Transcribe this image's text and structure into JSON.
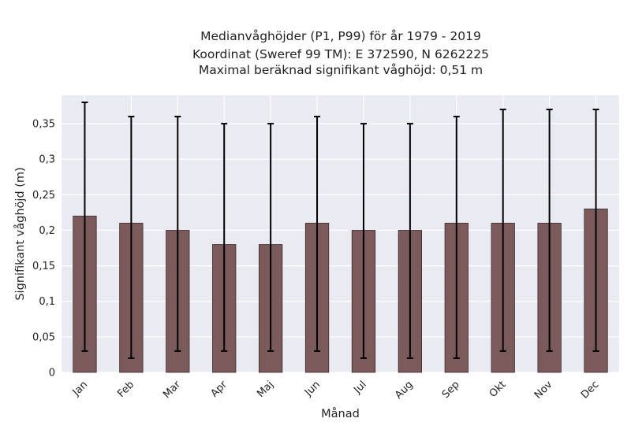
{
  "chart_data": {
    "type": "bar",
    "title_lines": [
      "Medianvåghöjder (P1, P99) för år 1979 - 2019",
      "Koordinat (Sweref 99 TM): E 372590, N 6262225",
      "Maximal beräknad signifikant våghöjd: 0,51 m"
    ],
    "xlabel": "Månad",
    "ylabel": "Signifikant våghöjd (m)",
    "categories": [
      "Jan",
      "Feb",
      "Mar",
      "Apr",
      "Maj",
      "Jun",
      "Jul",
      "Aug",
      "Sep",
      "Okt",
      "Nov",
      "Dec"
    ],
    "values": [
      0.22,
      0.21,
      0.2,
      0.18,
      0.18,
      0.21,
      0.2,
      0.2,
      0.21,
      0.21,
      0.21,
      0.23
    ],
    "p1": [
      0.03,
      0.02,
      0.03,
      0.03,
      0.03,
      0.03,
      0.02,
      0.02,
      0.02,
      0.03,
      0.03,
      0.03
    ],
    "p99": [
      0.38,
      0.36,
      0.36,
      0.35,
      0.35,
      0.36,
      0.35,
      0.35,
      0.36,
      0.37,
      0.37,
      0.37
    ],
    "ylim": [
      0,
      0.39
    ],
    "yticks": [
      0,
      0.05,
      0.1,
      0.15,
      0.2,
      0.25,
      0.3,
      0.35
    ],
    "ytick_labels": [
      "0",
      "0,05",
      "0,1",
      "0,15",
      "0,2",
      "0,25",
      "0,3",
      "0,35"
    ],
    "grid": true,
    "bar_color": "#7a5a5a",
    "bar_edge_color": "#3d2b2b",
    "errorbar_color": "#000000",
    "plot_background": "#eaeaf2",
    "grid_color": "#ffffff"
  }
}
